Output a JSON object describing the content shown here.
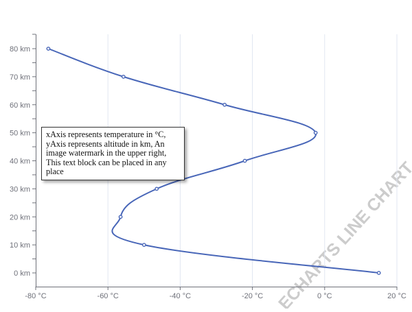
{
  "chart_data": {
    "type": "line",
    "orientation": "vertical-value-axis",
    "series": [
      {
        "color": "#4866b8",
        "smooth": true,
        "points": [
          {
            "x": 15,
            "y": 0
          },
          {
            "x": -50,
            "y": 10
          },
          {
            "x": -56.5,
            "y": 20
          },
          {
            "x": -46.5,
            "y": 30
          },
          {
            "x": -22.1,
            "y": 40
          },
          {
            "x": -2.5,
            "y": 50
          },
          {
            "x": -27.7,
            "y": 60
          },
          {
            "x": -55.7,
            "y": 70
          },
          {
            "x": -76.5,
            "y": 80
          }
        ]
      }
    ],
    "x_axis": {
      "min": -80,
      "max": 20,
      "interval": 20,
      "tick_labels": [
        "-80 °C",
        "-60 °C",
        "-40 °C",
        "-20 °C",
        "0 °C",
        "20 °C"
      ],
      "split_lines": true
    },
    "y_axis": {
      "min": 0,
      "max": 80,
      "interval": 10,
      "tick_labels": [
        "0 km",
        "10 km",
        "20 km",
        "30 km",
        "40 km",
        "50 km",
        "60 km",
        "70 km",
        "80 km"
      ],
      "split_lines": false
    },
    "grid": true,
    "legend": "none"
  },
  "note": {
    "lines": [
      "xAxis represents temperature in °C,",
      "yAxis represents altitude in km, An",
      "image watermark in the upper right,",
      "This text block can be placed in any",
      "place"
    ]
  },
  "watermark": {
    "text": "ECHARTS LINE CHART",
    "color": "#cccccc"
  }
}
